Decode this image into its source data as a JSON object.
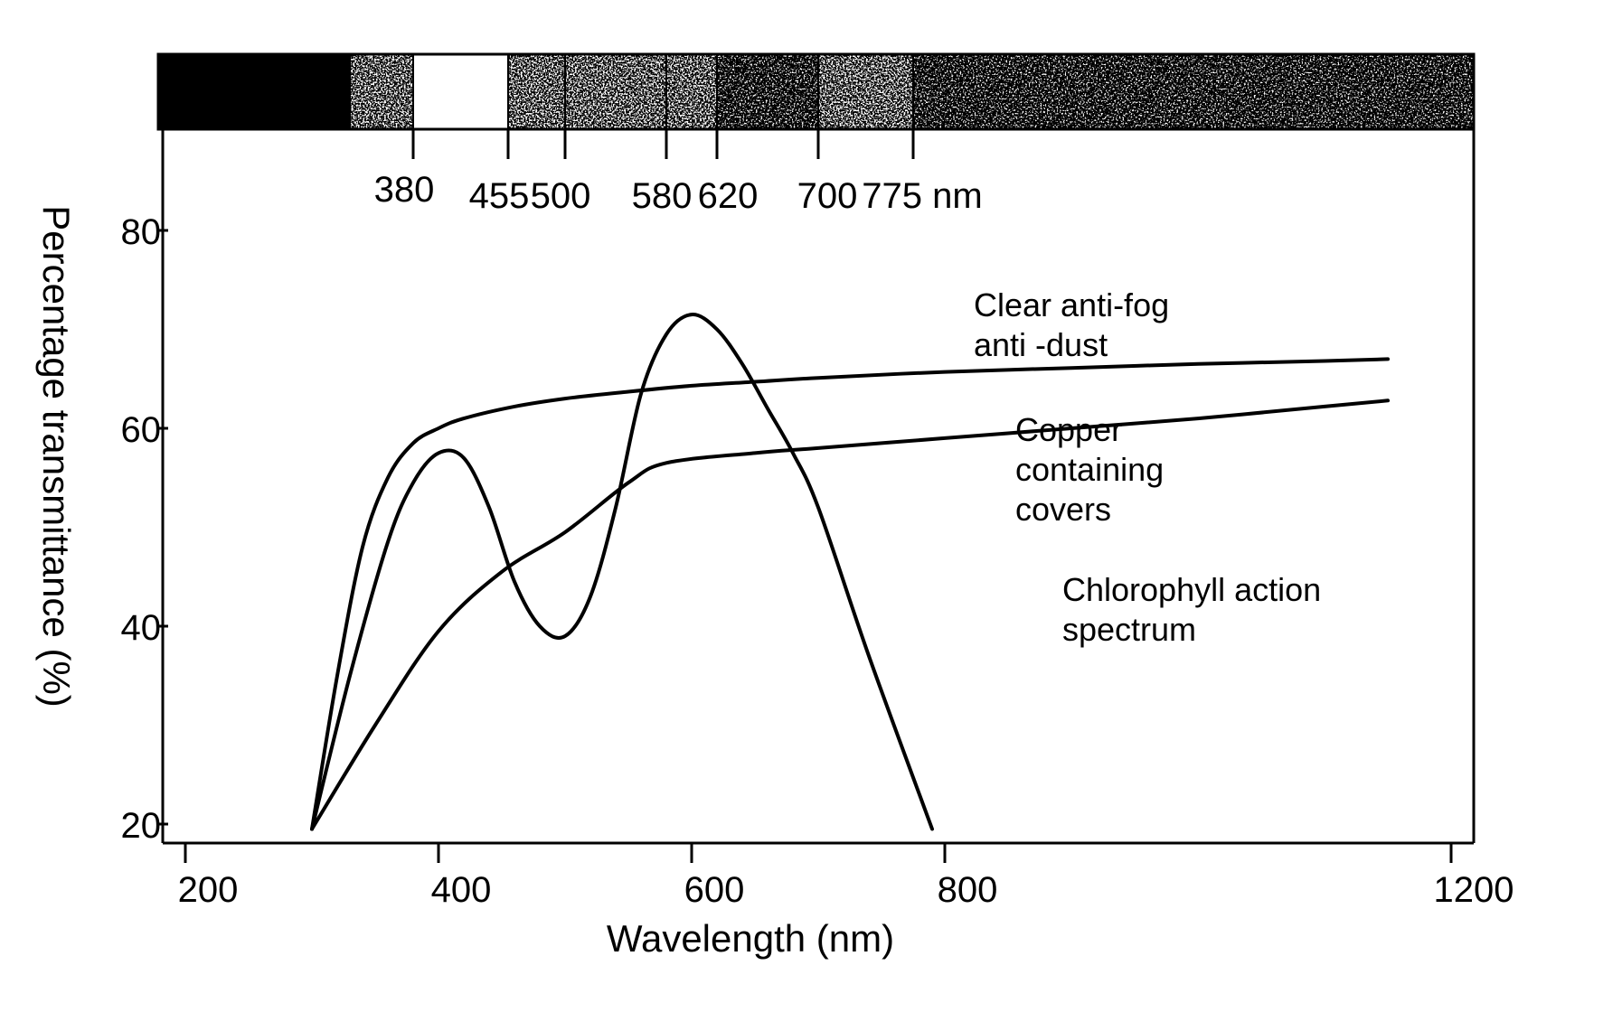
{
  "chart_data": {
    "type": "line",
    "xlabel": "Wavelength (nm)",
    "ylabel": "Percentage transmittance (%)",
    "xlim": [
      180,
      1210
    ],
    "ylim": [
      19,
      86
    ],
    "x_ticks": [
      200,
      400,
      600,
      800,
      1200
    ],
    "y_ticks": [
      20,
      40,
      60,
      80
    ],
    "grid": false,
    "legend": "none",
    "spectrum_band": {
      "boundaries": [
        330,
        380,
        455,
        500,
        580,
        620,
        700,
        775
      ],
      "labels": [
        "380",
        "455",
        "500",
        "580",
        "620",
        "700",
        "775 nm"
      ],
      "segments": [
        "solid-black",
        "speckle-light",
        "blank",
        "speckle-light",
        "speckle-light",
        "speckle-light",
        "speckle-dark",
        "speckle-light",
        "speckle-dark"
      ]
    },
    "series": [
      {
        "name": "Clear anti-fog anti -dust",
        "x": [
          300,
          320,
          340,
          360,
          380,
          400,
          420,
          460,
          500,
          550,
          600,
          650,
          700,
          800,
          900,
          1000,
          1100,
          1150
        ],
        "y": [
          19.5,
          35,
          48,
          55,
          58.5,
          60,
          61,
          62.2,
          63,
          63.7,
          64.3,
          64.7,
          65.1,
          65.7,
          66.1,
          66.5,
          66.8,
          67
        ]
      },
      {
        "name": "Copper containing covers",
        "x": [
          300,
          350,
          400,
          450,
          500,
          550,
          580,
          650,
          700,
          800,
          900,
          1000,
          1100,
          1150
        ],
        "y": [
          19.5,
          30,
          39.5,
          45.5,
          49.5,
          54.5,
          56.5,
          57.5,
          58,
          59,
          60,
          61,
          62.2,
          62.8
        ]
      },
      {
        "name": "Chlorophyll action spectrum",
        "x": [
          300,
          330,
          360,
          380,
          400,
          420,
          440,
          460,
          480,
          500,
          520,
          540,
          560,
          580,
          600,
          620,
          640,
          660,
          680,
          700,
          740,
          790
        ],
        "y": [
          19.5,
          35,
          48.5,
          54.5,
          57.5,
          57,
          52,
          44.5,
          40,
          39,
          43,
          52,
          63.5,
          69.5,
          71.5,
          70,
          66.5,
          62,
          57.5,
          52,
          37,
          19.5
        ]
      }
    ],
    "annotations": [
      {
        "lines": [
          "Clear anti-fog",
          "anti -dust"
        ],
        "series": 0
      },
      {
        "lines": [
          "Copper",
          "containing",
          "covers"
        ],
        "series": 1
      },
      {
        "lines": [
          "Chlorophyll action",
          "spectrum"
        ],
        "series": 2
      }
    ]
  }
}
